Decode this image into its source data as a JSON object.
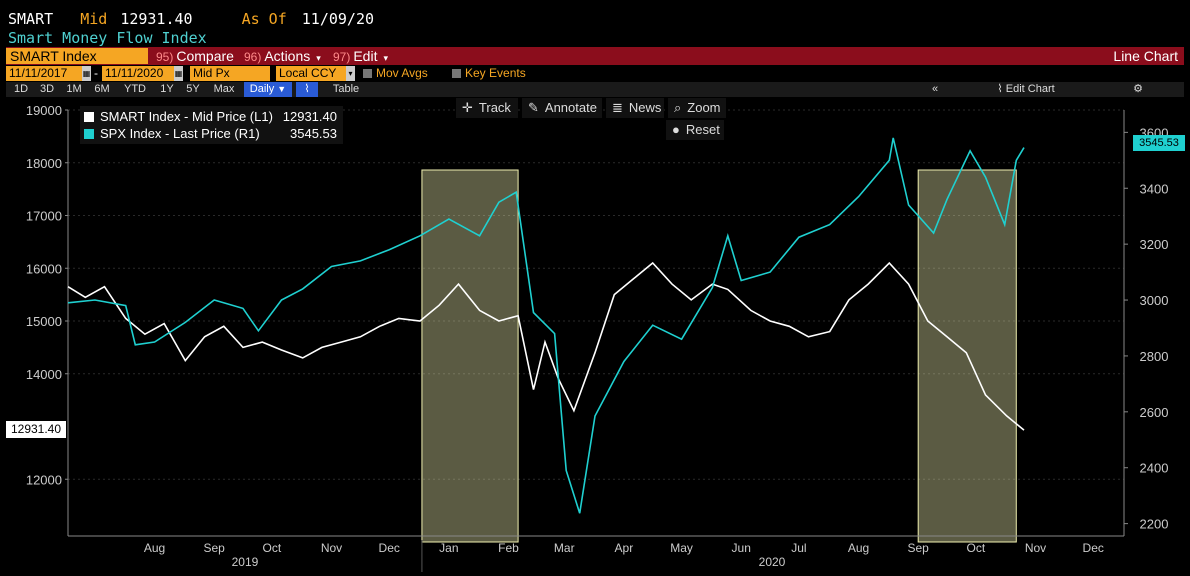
{
  "header": {
    "ticker": "SMART",
    "price_label": "Mid",
    "price": "12931.40",
    "asof_label": "As Of",
    "asof_date": "11/09/20",
    "subtitle": "Smart Money Flow Index"
  },
  "toolbar": {
    "security": "SMART Index",
    "compare_num": "95)",
    "compare": "Compare",
    "actions_num": "96)",
    "actions": "Actions",
    "edit_num": "97)",
    "edit": "Edit",
    "chart_type": "Line Chart"
  },
  "controls": {
    "start_date": "11/11/2017",
    "end_date": "11/11/2020",
    "field": "Mid Px",
    "currency": "Local CCY",
    "mov_avgs": "Mov Avgs",
    "key_events": "Key Events",
    "periods": [
      "1D",
      "3D",
      "1M",
      "6M",
      "YTD",
      "1Y",
      "5Y",
      "Max"
    ],
    "frequency": "Daily",
    "table": "Table",
    "edit_chart": "Edit Chart"
  },
  "tools": {
    "track": "Track",
    "annotate": "Annotate",
    "news": "News",
    "zoom": "Zoom",
    "reset": "Reset"
  },
  "legend": [
    {
      "name": "SMART Index - Mid Price (L1)",
      "value": "12931.40",
      "color": "#ffffff"
    },
    {
      "name": "SPX Index - Last Price (R1)",
      "value": "3545.53",
      "color": "#1fd0d0"
    }
  ],
  "last_left": "12931.40",
  "last_right": "3545.53",
  "colors": {
    "smart": "#ffffff",
    "spx": "#1fd0d0",
    "highlight": "#f0f0b0",
    "accent": "#f5a623",
    "bar": "#8b0d1c"
  },
  "chart_data": {
    "type": "line",
    "x_months": [
      "Aug",
      "Sep",
      "Oct",
      "Nov",
      "Dec",
      "Jan",
      "Feb",
      "Mar",
      "Apr",
      "May",
      "Jun",
      "Jul",
      "Aug",
      "Sep",
      "Oct",
      "Nov",
      "Dec"
    ],
    "x_years": [
      "2019",
      "2020"
    ],
    "y_left_ticks": [
      12000,
      14000,
      15000,
      16000,
      17000,
      18000,
      19000
    ],
    "y_right_ticks": [
      2200,
      2400,
      2600,
      2800,
      3000,
      3200,
      3400,
      3600
    ],
    "ylim_left": [
      11000,
      19000
    ],
    "ylim_right": [
      2170,
      3680
    ],
    "x_range": [
      "2019-07-01",
      "2020-12-31"
    ],
    "series": [
      {
        "name": "SMART Index - Mid Price (L1)",
        "axis": "left",
        "points": [
          [
            "2019-07-01",
            15650
          ],
          [
            "2019-07-10",
            15450
          ],
          [
            "2019-07-20",
            15650
          ],
          [
            "2019-07-31",
            15050
          ],
          [
            "2019-08-10",
            14750
          ],
          [
            "2019-08-20",
            14950
          ],
          [
            "2019-08-31",
            14250
          ],
          [
            "2019-09-10",
            14700
          ],
          [
            "2019-09-20",
            14900
          ],
          [
            "2019-09-30",
            14500
          ],
          [
            "2019-10-10",
            14600
          ],
          [
            "2019-10-20",
            14450
          ],
          [
            "2019-10-31",
            14300
          ],
          [
            "2019-11-10",
            14500
          ],
          [
            "2019-11-20",
            14600
          ],
          [
            "2019-11-30",
            14700
          ],
          [
            "2019-12-10",
            14900
          ],
          [
            "2019-12-20",
            15050
          ],
          [
            "2019-12-31",
            15000
          ],
          [
            "2020-01-10",
            15300
          ],
          [
            "2020-01-20",
            15700
          ],
          [
            "2020-01-31",
            15200
          ],
          [
            "2020-02-10",
            15000
          ],
          [
            "2020-02-20",
            15100
          ],
          [
            "2020-02-28",
            13700
          ],
          [
            "2020-03-05",
            14600
          ],
          [
            "2020-03-12",
            13900
          ],
          [
            "2020-03-20",
            13300
          ],
          [
            "2020-03-31",
            14400
          ],
          [
            "2020-04-10",
            15500
          ],
          [
            "2020-04-20",
            15800
          ],
          [
            "2020-04-30",
            16100
          ],
          [
            "2020-05-10",
            15700
          ],
          [
            "2020-05-20",
            15400
          ],
          [
            "2020-05-31",
            15700
          ],
          [
            "2020-06-08",
            15600
          ],
          [
            "2020-06-20",
            15200
          ],
          [
            "2020-06-30",
            15000
          ],
          [
            "2020-07-10",
            14900
          ],
          [
            "2020-07-20",
            14700
          ],
          [
            "2020-07-31",
            14800
          ],
          [
            "2020-08-10",
            15400
          ],
          [
            "2020-08-20",
            15700
          ],
          [
            "2020-08-31",
            16100
          ],
          [
            "2020-09-10",
            15700
          ],
          [
            "2020-09-20",
            15000
          ],
          [
            "2020-09-30",
            14700
          ],
          [
            "2020-10-10",
            14400
          ],
          [
            "2020-10-20",
            13600
          ],
          [
            "2020-10-31",
            13200
          ],
          [
            "2020-11-09",
            12931.4
          ]
        ]
      },
      {
        "name": "SPX Index - Last Price (R1)",
        "axis": "right",
        "points": [
          [
            "2019-07-01",
            2990
          ],
          [
            "2019-07-15",
            3000
          ],
          [
            "2019-07-31",
            2980
          ],
          [
            "2019-08-05",
            2840
          ],
          [
            "2019-08-15",
            2850
          ],
          [
            "2019-08-31",
            2920
          ],
          [
            "2019-09-15",
            3000
          ],
          [
            "2019-09-30",
            2970
          ],
          [
            "2019-10-08",
            2890
          ],
          [
            "2019-10-20",
            3000
          ],
          [
            "2019-10-31",
            3040
          ],
          [
            "2019-11-15",
            3120
          ],
          [
            "2019-11-30",
            3140
          ],
          [
            "2019-12-15",
            3180
          ],
          [
            "2019-12-31",
            3230
          ],
          [
            "2020-01-15",
            3290
          ],
          [
            "2020-01-31",
            3230
          ],
          [
            "2020-02-10",
            3350
          ],
          [
            "2020-02-19",
            3386
          ],
          [
            "2020-02-28",
            2955
          ],
          [
            "2020-03-10",
            2880
          ],
          [
            "2020-03-16",
            2390
          ],
          [
            "2020-03-23",
            2237
          ],
          [
            "2020-03-31",
            2585
          ],
          [
            "2020-04-15",
            2780
          ],
          [
            "2020-04-30",
            2910
          ],
          [
            "2020-05-15",
            2860
          ],
          [
            "2020-05-31",
            3045
          ],
          [
            "2020-06-08",
            3230
          ],
          [
            "2020-06-15",
            3070
          ],
          [
            "2020-06-30",
            3100
          ],
          [
            "2020-07-15",
            3225
          ],
          [
            "2020-07-31",
            3270
          ],
          [
            "2020-08-15",
            3370
          ],
          [
            "2020-08-31",
            3500
          ],
          [
            "2020-09-02",
            3580
          ],
          [
            "2020-09-10",
            3340
          ],
          [
            "2020-09-23",
            3240
          ],
          [
            "2020-09-30",
            3360
          ],
          [
            "2020-10-12",
            3534
          ],
          [
            "2020-10-20",
            3440
          ],
          [
            "2020-10-30",
            3270
          ],
          [
            "2020-11-05",
            3500
          ],
          [
            "2020-11-09",
            3545.53
          ]
        ]
      }
    ],
    "highlight_ranges": [
      [
        "2020-01-01",
        "2020-02-20"
      ],
      [
        "2020-09-15",
        "2020-11-05"
      ]
    ]
  }
}
